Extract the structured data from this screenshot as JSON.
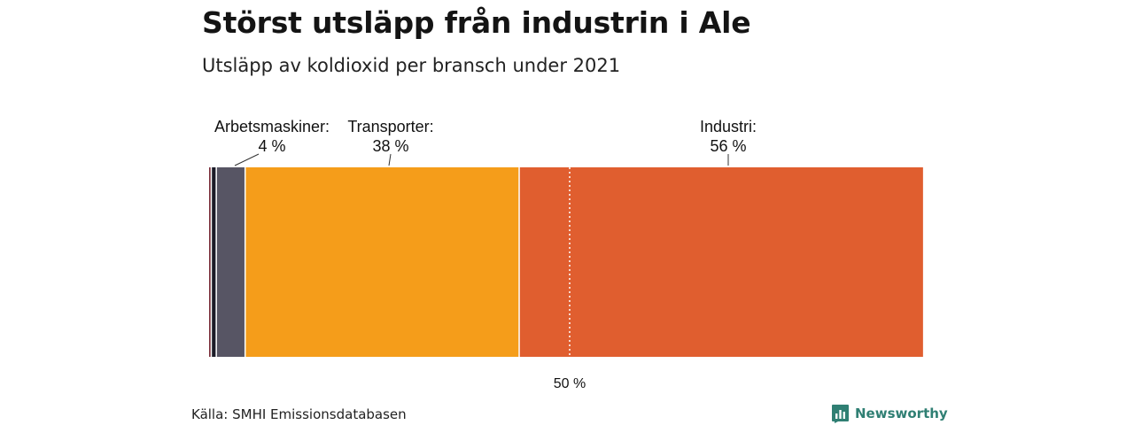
{
  "header": {
    "title": "Störst utsläpp från industrin i Ale",
    "subtitle": "Utsläpp av koldioxid per bransch under 2021"
  },
  "footer": {
    "source": "Källa: SMHI Emissionsdatabasen",
    "brand": "Newsworthy",
    "brand_icon": "bar-chart-icon",
    "brand_color": "#2f7f73"
  },
  "chart_data": {
    "type": "bar",
    "orientation": "horizontal-stacked",
    "unit": "%",
    "xlim": [
      0,
      100
    ],
    "segments": [
      {
        "name": "",
        "value": 0.3,
        "color": "#7a2e3a",
        "labeled": false
      },
      {
        "name": "",
        "value": 0.7,
        "color": "#1c1c28",
        "labeled": false
      },
      {
        "name": "Arbetsmaskiner",
        "value": 4,
        "color": "#575564",
        "labeled": true,
        "label": "Arbetsmaskiner:",
        "value_label": "4 %"
      },
      {
        "name": "Transporter",
        "value": 38,
        "color": "#f59d1a",
        "labeled": true,
        "label": "Transporter:",
        "value_label": "38 %"
      },
      {
        "name": "Industri",
        "value": 56,
        "color": "#e05e2f",
        "labeled": true,
        "label": "Industri:",
        "value_label": "56 %"
      }
    ],
    "reference_line": {
      "value": 50,
      "label": "50 %"
    }
  }
}
